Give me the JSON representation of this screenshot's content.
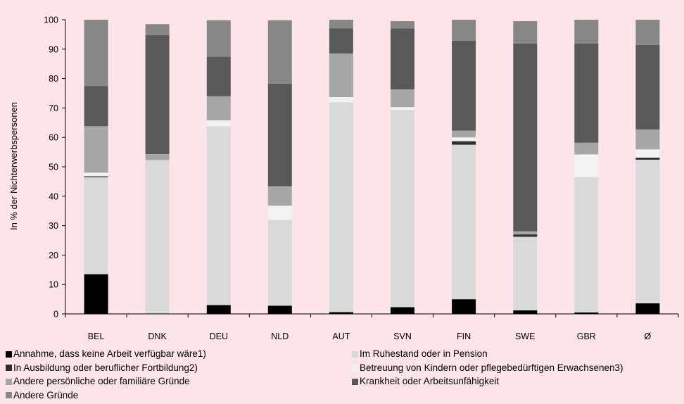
{
  "chart_data": {
    "type": "bar",
    "stacked": true,
    "ylabel": "In % der Nichterwerbspersonen",
    "xlabel": "",
    "ylim": [
      0,
      100
    ],
    "yticks": [
      0,
      10,
      20,
      30,
      40,
      50,
      60,
      70,
      80,
      90,
      100
    ],
    "grid": false,
    "legend_position": "bottom",
    "categories": [
      "BEL",
      "DNK",
      "DEU",
      "NLD",
      "AUT",
      "SVN",
      "FIN",
      "SWE",
      "GBR",
      "Ø"
    ],
    "series": [
      {
        "name": "Annahme, dass keine Arbeit verfügbar wäre1)",
        "color": "#000000",
        "values": [
          13.5,
          0.0,
          3.0,
          2.8,
          0.6,
          2.3,
          5.0,
          1.2,
          0.5,
          3.6
        ]
      },
      {
        "name": "In Ausbildung oder beruflicher Fortbildung2)",
        "color": "#2e2e2e",
        "values": [
          0.0,
          0.0,
          0.0,
          0.0,
          0.0,
          0.0,
          0.0,
          0.0,
          0.0,
          0.0
        ]
      },
      {
        "name": "Im Ruhestand oder in Pension",
        "color": "#d9d9d9",
        "values": [
          33.0,
          52.3,
          60.8,
          29.2,
          71.3,
          67.0,
          52.5,
          25.0,
          46.0,
          48.8
        ]
      },
      {
        "name": "In Ausbildung oder beruflicher Fortbildung2)",
        "color": "#2e2e2e",
        "values": [
          0.3,
          0.0,
          0.0,
          0.0,
          0.0,
          0.0,
          1.2,
          0.8,
          0.0,
          0.7
        ]
      },
      {
        "name": "Betreuung von Kindern oder pflegebedürftigen Erwachsenen3)",
        "color": "#f2f2f2",
        "values": [
          1.2,
          0.0,
          2.0,
          4.8,
          1.8,
          1.0,
          1.3,
          0.0,
          7.7,
          2.8
        ]
      },
      {
        "name": "Andere persönliche oder familiäre Gründe",
        "color": "#a6a6a6",
        "values": [
          15.8,
          2.0,
          8.2,
          6.6,
          14.8,
          6.0,
          2.3,
          1.1,
          4.0,
          6.8
        ]
      },
      {
        "name": "Krankheit oder Arbeitsunfähigkeit",
        "color": "#595959",
        "values": [
          13.6,
          40.5,
          13.5,
          34.9,
          8.5,
          20.7,
          30.6,
          63.8,
          33.7,
          28.7
        ]
      },
      {
        "name": "Andere Gründe",
        "color": "#878787",
        "values": [
          22.6,
          3.7,
          12.3,
          21.5,
          3.0,
          2.5,
          7.1,
          7.6,
          8.1,
          8.6
        ]
      }
    ]
  },
  "legend": {
    "items": [
      {
        "label": "Annahme, dass keine Arbeit verfügbar wäre1)",
        "color": "#000000",
        "icon": "square"
      },
      {
        "label": "Im Ruhestand oder in Pension",
        "color": "#d9d9d9",
        "icon": "square"
      },
      {
        "label": "In Ausbildung oder beruflicher Fortbildung2)",
        "color": "#2e2e2e",
        "icon": "square"
      },
      {
        "label": "Betreuung von Kindern oder pflegebedürftigen Erwachsenen3)",
        "color": "#f2f2f2",
        "icon": "square"
      },
      {
        "label": "Andere persönliche oder familiäre Gründe",
        "color": "#a6a6a6",
        "icon": "square"
      },
      {
        "label": "Krankheit oder Arbeitsunfähigkeit",
        "color": "#595959",
        "icon": "square"
      },
      {
        "label": "Andere Gründe",
        "color": "#878787",
        "icon": "square"
      }
    ]
  },
  "colors": {
    "background": "#fce4e8",
    "axis": "#000000"
  }
}
